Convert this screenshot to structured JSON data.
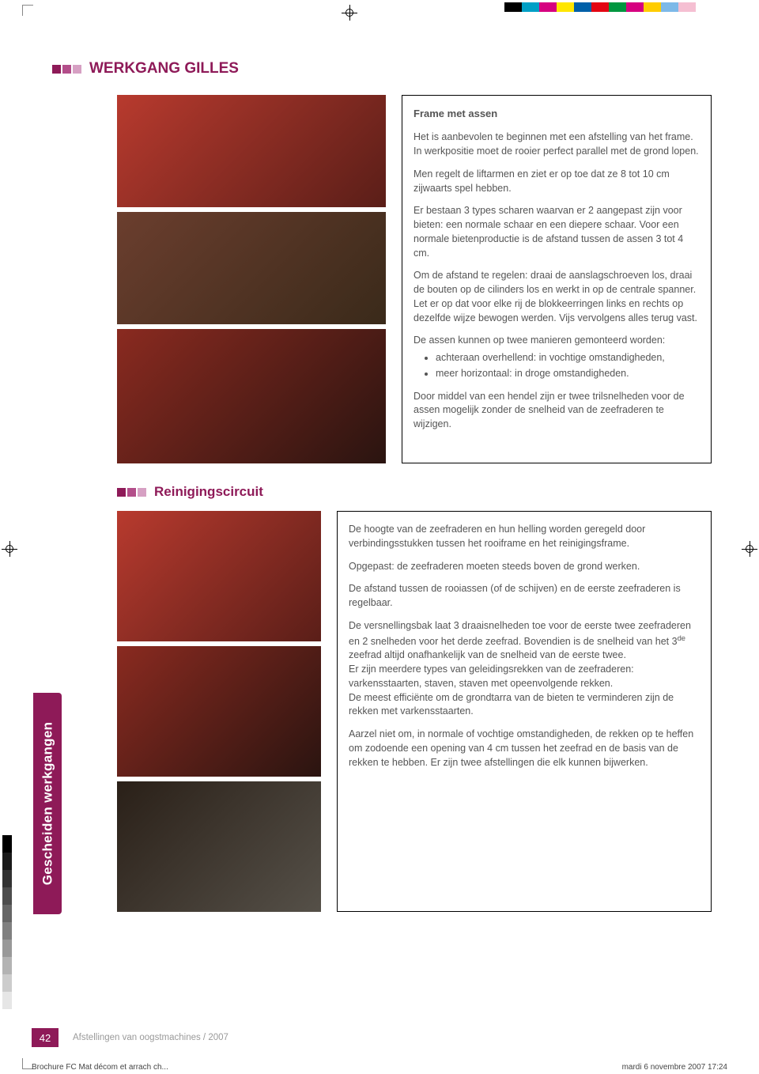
{
  "colors": {
    "accent": "#8e1a58",
    "sq1": "#8e1a58",
    "sq2": "#b34e8a",
    "sq3": "#d6a0c3",
    "body_text": "#5a5a5a",
    "footer_text": "#9a9a9a",
    "tab_bg": "#8e1a58"
  },
  "colorbar_top": [
    "#000000",
    "#00a0c6",
    "#d60080",
    "#ffe600",
    "#0060a8",
    "#e30613",
    "#00963f",
    "#d60080",
    "#ffcc00",
    "#7db9e8",
    "#f5bfd2"
  ],
  "graybar_left": [
    "#000000",
    "#1a1a1a",
    "#333333",
    "#4d4d4d",
    "#666666",
    "#808080",
    "#999999",
    "#b3b3b3",
    "#cccccc",
    "#e6e6e6",
    "#ffffff"
  ],
  "header": {
    "title": "WERKGANG GILLES"
  },
  "box1": {
    "heading": "Frame met assen",
    "p1": "Het is aanbevolen te beginnen met een afstelling van het frame. In werkpositie moet de rooier perfect parallel met de grond lopen.",
    "p2": "Men regelt de liftarmen en ziet er op toe dat ze 8 tot 10 cm zijwaarts spel hebben.",
    "p3": "Er bestaan 3 types scharen waarvan er 2 aangepast zijn voor bieten: een normale schaar en een diepere schaar. Voor een normale bietenproductie is de afstand tussen de assen 3 tot 4 cm.",
    "p4": "Om de afstand te regelen: draai de aanslagschroeven los, draai de bouten op de cilinders los en werkt in op de centrale spanner. Let er op dat voor elke rij de blokkeerringen links en rechts op dezelfde wijze bewogen werden. Vijs vervolgens alles terug vast.",
    "p5": "De assen kunnen op twee manieren gemonteerd worden:",
    "li1": "achteraan overhellend: in vochtige omstandigheden,",
    "li2": "meer horizontaal: in droge omstandigheden.",
    "p6": "Door middel van een hendel zijn er twee trilsnelheden voor de assen mogelijk zonder de snelheid van de zeefraderen te wijzigen."
  },
  "sub": {
    "title": "Reinigingscircuit"
  },
  "side_tab": "Gescheiden werkgangen",
  "box2": {
    "p1": "De hoogte van de zeefraderen en hun helling worden geregeld door verbindingsstukken tussen het rooiframe en het reinigingsframe.",
    "p2": "Opgepast: de zeefraderen moeten steeds boven de grond werken.",
    "p3": "De afstand tussen de rooiassen (of de schijven) en de eerste zeefraderen is regelbaar.",
    "p4a": "De versnellingsbak laat 3 draaisnelheden toe voor de eerste twee zeefraderen en 2 snelheden voor het derde zeefrad. Bovendien is de snelheid van het 3",
    "p4sup": "de",
    "p4b": " zeefrad altijd onafhankelijk van de snelheid van de eerste twee.",
    "p5": "Er zijn meerdere types van geleidingsrekken van de zeefraderen: varkensstaarten, staven, staven met opeenvolgende rekken.",
    "p6": "De meest efficiënte om de grondtarra van de bieten te verminderen zijn de rekken met varkensstaarten.",
    "p7": "Aarzel niet om, in normale of vochtige omstandigheden, de rekken op te heffen om zodoende een opening van 4 cm tussen het zeefrad en de basis van de rekken te hebben. Er zijn twee afstellingen die elk kunnen bijwerken."
  },
  "footer": {
    "page_number": "42",
    "text": "Afstellingen van oogstmachines / 2007"
  },
  "meta": {
    "left": "Brochure FC Mat décom et arrach ch...",
    "right": "mardi 6 novembre 2007 17:24"
  },
  "photos": {
    "top1_h": 142,
    "top2_h": 142,
    "top3_h": 170,
    "bot1_h": 165,
    "bot2_h": 165,
    "bot3_h": 165
  }
}
